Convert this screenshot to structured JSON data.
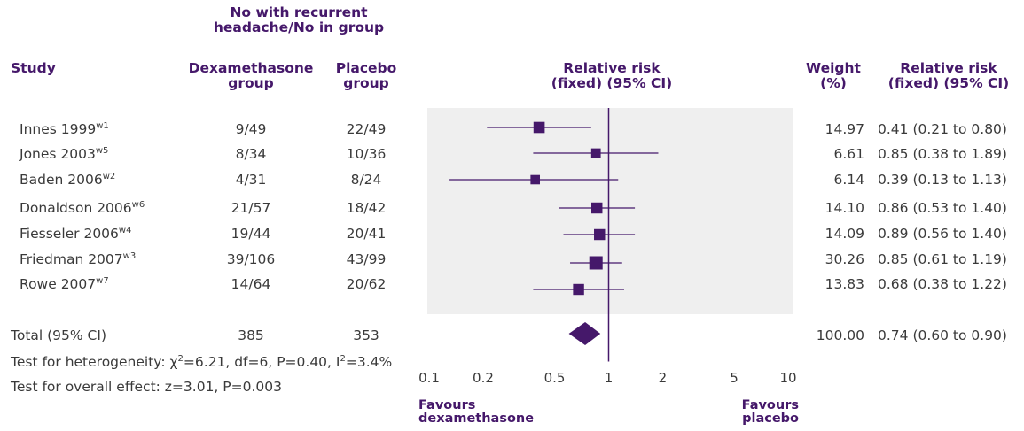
{
  "headers": {
    "group_span": [
      "No with recurrent",
      "headache/No in group"
    ],
    "study": "Study",
    "dex": [
      "Dexamethasone",
      "group"
    ],
    "placebo": [
      "Placebo",
      "group"
    ],
    "rr_plot": [
      "Relative risk",
      "(fixed) (95% CI)"
    ],
    "weight": [
      "Weight",
      "(%)"
    ],
    "rr_text": [
      "Relative risk",
      "(fixed) (95% CI)"
    ]
  },
  "rows": [
    {
      "study": "Innes 1999",
      "ref": "w1",
      "dex": "9/49",
      "placebo": "22/49",
      "weight": "14.97",
      "rr": "0.41 (0.21 to 0.80)"
    },
    {
      "study": "Jones 2003",
      "ref": "w5",
      "dex": "8/34",
      "placebo": "10/36",
      "weight": "6.61",
      "rr": "0.85 (0.38 to 1.89)"
    },
    {
      "study": "Baden 2006",
      "ref": "w2",
      "dex": "4/31",
      "placebo": "8/24",
      "weight": "6.14",
      "rr": "0.39 (0.13 to 1.13)"
    },
    {
      "study": "Donaldson 2006",
      "ref": "w6",
      "dex": "21/57",
      "placebo": "18/42",
      "weight": "14.10",
      "rr": "0.86 (0.53 to 1.40)"
    },
    {
      "study": "Fiesseler 2006",
      "ref": "w4",
      "dex": "19/44",
      "placebo": "20/41",
      "weight": "14.09",
      "rr": "0.89 (0.56 to 1.40)"
    },
    {
      "study": "Friedman 2007",
      "ref": "w3",
      "dex": "39/106",
      "placebo": "43/99",
      "weight": "30.26",
      "rr": "0.85 (0.61 to 1.19)"
    },
    {
      "study": "Rowe 2007",
      "ref": "w7",
      "dex": "14/64",
      "placebo": "20/62",
      "weight": "13.83",
      "rr": "0.68 (0.38 to 1.22)"
    }
  ],
  "total": {
    "label": "Total (95% CI)",
    "dex": "385",
    "placebo": "353",
    "weight": "100.00",
    "rr": "0.74 (0.60 to 0.90)"
  },
  "heterogeneity": {
    "prefix": "Test for heterogeneity: ",
    "chi": "χ",
    "chi_sup": "2",
    "mid": "=6.21, df=6, P=0.40, I",
    "i_sup": "2",
    "end": "=3.4%"
  },
  "overall_effect": "Test for overall effect: z=3.01, P=0.003",
  "favours_left": [
    "Favours",
    "dexamethasone"
  ],
  "favours_right": [
    "Favours",
    "placebo"
  ],
  "colors": {
    "accent": "#45186a",
    "panel": "#efefef"
  },
  "chart_data": {
    "type": "forest",
    "x_scale": "log",
    "xlim": [
      0.1,
      10
    ],
    "x_ticks": [
      0.1,
      0.2,
      0.5,
      1,
      2,
      5,
      10
    ],
    "x_tick_labels": [
      "0.1",
      "0.2",
      "0.5",
      "1",
      "2",
      "5",
      "10"
    ],
    "reference_line": 1,
    "studies": [
      {
        "name": "Innes 1999",
        "rr": 0.41,
        "lo": 0.21,
        "hi": 0.8,
        "weight": 14.97
      },
      {
        "name": "Jones 2003",
        "rr": 0.85,
        "lo": 0.38,
        "hi": 1.89,
        "weight": 6.61
      },
      {
        "name": "Baden 2006",
        "rr": 0.39,
        "lo": 0.13,
        "hi": 1.13,
        "weight": 6.14
      },
      {
        "name": "Donaldson 2006",
        "rr": 0.86,
        "lo": 0.53,
        "hi": 1.4,
        "weight": 14.1
      },
      {
        "name": "Fiesseler 2006",
        "rr": 0.89,
        "lo": 0.56,
        "hi": 1.4,
        "weight": 14.09
      },
      {
        "name": "Friedman 2007",
        "rr": 0.85,
        "lo": 0.61,
        "hi": 1.19,
        "weight": 30.26
      },
      {
        "name": "Rowe 2007",
        "rr": 0.68,
        "lo": 0.38,
        "hi": 1.22,
        "weight": 13.83
      }
    ],
    "pooled": {
      "rr": 0.74,
      "lo": 0.6,
      "hi": 0.9
    }
  }
}
